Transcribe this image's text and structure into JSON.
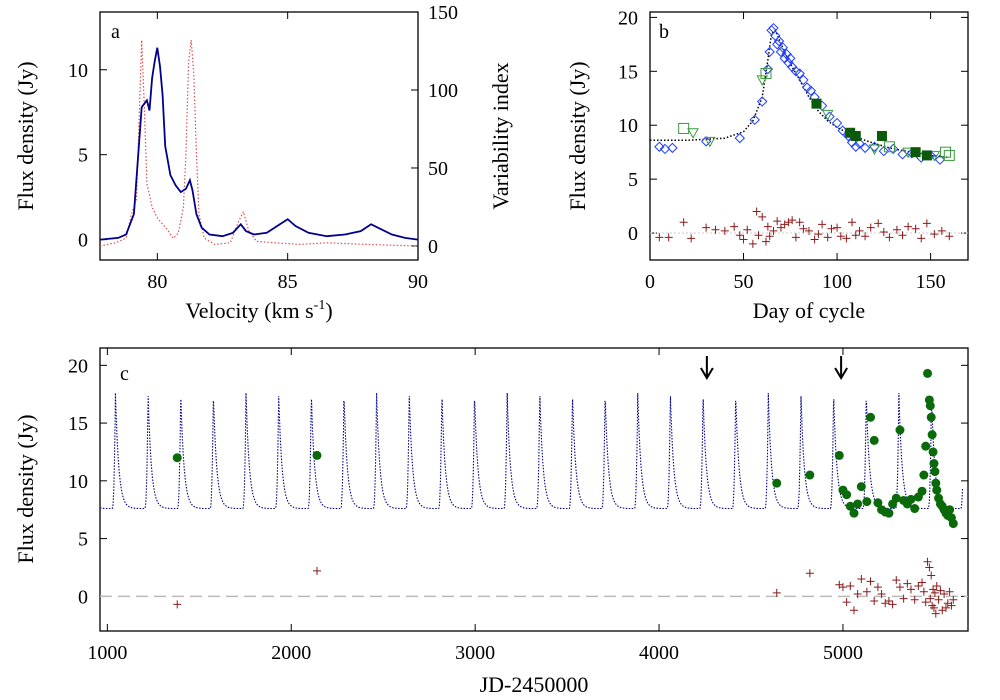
{
  "figure": {
    "panels": [
      {
        "id": "a",
        "letter": "a",
        "type": "line",
        "xlabel": "Velocity (km s",
        "xlabel_sup": "-1",
        "xlabel_tail": ")",
        "ylabel": "Flux density (Jy)",
        "y2label": "Variability index",
        "xlim": [
          77.8,
          90
        ],
        "ylim": [
          -1.2,
          13.4
        ],
        "y2lim": [
          -9,
          150
        ],
        "xticks": [
          80,
          85,
          90
        ],
        "yticks": [
          0,
          5,
          10
        ],
        "y2ticks": [
          0,
          50,
          100,
          150
        ],
        "colors": {
          "flux": "#00008b",
          "variability": "#e05050"
        }
      },
      {
        "id": "b",
        "letter": "b",
        "type": "scatter",
        "xlabel": "Day of cycle",
        "ylabel": "Flux density (Jy)",
        "xlim": [
          0,
          170
        ],
        "ylim": [
          -2.5,
          20.5
        ],
        "xticks": [
          0,
          50,
          100,
          150
        ],
        "yticks": [
          0,
          5,
          10,
          15,
          20
        ],
        "colors": {
          "diamond": "#1f3fff",
          "triangle": "#3a9a3a",
          "open_square": "#3a9a3a",
          "filled_square": "#0a5a0a",
          "cross": "#8b1a1a",
          "model": "#000000"
        }
      },
      {
        "id": "c",
        "letter": "c",
        "type": "scatter",
        "xlabel": "JD-2450000",
        "ylabel": "Flux density (Jy)",
        "xlim": [
          960,
          5680
        ],
        "ylim": [
          -3,
          21.5
        ],
        "xticks": [
          1000,
          2000,
          3000,
          4000,
          5000
        ],
        "yticks": [
          0,
          5,
          10,
          15,
          20
        ],
        "colors": {
          "model": "#00008b",
          "points": "#0a6a0a",
          "residual": "#8b1a1a",
          "zero": "#bbbbbb"
        }
      }
    ]
  },
  "chart_data": [
    {
      "panel": "a",
      "type": "line",
      "xlabel": "Velocity (km s-1)",
      "ylabel": "Flux density (Jy)",
      "y2label": "Variability index",
      "xlim": [
        77.8,
        90
      ],
      "ylim": [
        -1.2,
        13.4
      ],
      "y2lim": [
        -9,
        150
      ],
      "series": [
        {
          "axis": "left",
          "style": "solid",
          "x": [
            77.8,
            78.5,
            78.8,
            79.1,
            79.4,
            79.6,
            79.7,
            79.8,
            79.9,
            80.0,
            80.1,
            80.2,
            80.3,
            80.5,
            80.7,
            80.9,
            81.1,
            81.25,
            81.35,
            81.5,
            81.7,
            82.0,
            82.5,
            82.9,
            83.2,
            83.4,
            83.7,
            84.2,
            84.7,
            85.0,
            85.3,
            85.8,
            86.5,
            87.2,
            87.8,
            88.2,
            88.6,
            89.0,
            89.5,
            90.0
          ],
          "y": [
            0.0,
            0.1,
            0.3,
            1.5,
            7.8,
            8.2,
            7.6,
            9.5,
            10.5,
            11.3,
            10.2,
            8.5,
            5.5,
            3.8,
            3.2,
            2.8,
            3.0,
            3.5,
            2.9,
            1.5,
            0.7,
            0.3,
            0.2,
            0.4,
            0.9,
            0.5,
            0.3,
            0.4,
            0.9,
            1.2,
            0.8,
            0.4,
            0.2,
            0.3,
            0.5,
            0.9,
            0.6,
            0.3,
            0.1,
            0.0
          ]
        },
        {
          "axis": "right",
          "style": "dotted",
          "x": [
            77.8,
            78.4,
            78.8,
            79.0,
            79.2,
            79.4,
            79.5,
            79.6,
            79.8,
            80.0,
            80.2,
            80.4,
            80.6,
            80.8,
            81.0,
            81.1,
            81.2,
            81.3,
            81.4,
            81.5,
            81.6,
            81.8,
            82.2,
            82.8,
            83.1,
            83.3,
            83.5,
            83.8,
            84.5,
            85.5,
            86.5,
            88.0,
            90.0
          ],
          "y": [
            0,
            2,
            5,
            20,
            30,
            132,
            90,
            40,
            25,
            18,
            14,
            10,
            5,
            8,
            25,
            60,
            118,
            132,
            110,
            60,
            20,
            5,
            1,
            2,
            15,
            22,
            10,
            3,
            2,
            1,
            2,
            1,
            0
          ]
        }
      ]
    },
    {
      "panel": "b",
      "type": "scatter",
      "xlabel": "Day of cycle",
      "ylabel": "Flux density (Jy)",
      "xlim": [
        0,
        170
      ],
      "ylim": [
        -2.5,
        20.5
      ],
      "model_curve": {
        "x": [
          0,
          10,
          20,
          30,
          40,
          50,
          55,
          60,
          63,
          65,
          67,
          70,
          73,
          76,
          80,
          85,
          90,
          95,
          100,
          110,
          120,
          130,
          140,
          150,
          160
        ],
        "y": [
          8.6,
          8.6,
          8.6,
          8.7,
          8.8,
          9.4,
          10.4,
          12.6,
          16.0,
          18.5,
          18.8,
          17.6,
          16.4,
          15.4,
          14.2,
          12.6,
          11.3,
          10.4,
          9.8,
          8.9,
          8.3,
          7.8,
          7.5,
          7.2,
          7.0
        ]
      },
      "diamonds": {
        "x": [
          5,
          8,
          12,
          30,
          48,
          56,
          60,
          63,
          64,
          65,
          66,
          67,
          68,
          69,
          70,
          71,
          72,
          73,
          74,
          75,
          76,
          78,
          80,
          82,
          84,
          86,
          88,
          92,
          96,
          100,
          103,
          106,
          108,
          110,
          112,
          115,
          120,
          125,
          130,
          135,
          140,
          145,
          150,
          155
        ],
        "y": [
          8.0,
          7.8,
          7.9,
          8.5,
          8.8,
          10.5,
          12.2,
          15.2,
          16.8,
          18.8,
          19.0,
          18.3,
          17.5,
          17.8,
          16.8,
          17.2,
          16.2,
          16.6,
          15.8,
          16.2,
          15.4,
          15.0,
          14.8,
          14.2,
          13.5,
          13.2,
          12.6,
          11.8,
          10.8,
          10.2,
          9.5,
          9.0,
          8.4,
          8.0,
          8.3,
          7.9,
          8.0,
          7.6,
          7.8,
          7.3,
          7.4,
          7.0,
          7.2,
          6.8
        ]
      },
      "triangles": {
        "x": [
          23,
          32,
          60,
          95,
          120,
          138,
          152
        ],
        "y": [
          9.3,
          8.5,
          14.2,
          11.0,
          7.8,
          7.5,
          7.2
        ]
      },
      "open_squares": {
        "x": [
          18,
          62,
          128,
          158,
          160
        ],
        "y": [
          9.7,
          14.8,
          8.0,
          7.5,
          7.2
        ]
      },
      "filled_squares": {
        "x": [
          89,
          107,
          110,
          124,
          142,
          148
        ],
        "y": [
          12.0,
          9.3,
          9.0,
          9.0,
          7.5,
          7.2
        ]
      },
      "crosses": {
        "x": [
          5,
          10,
          18,
          22,
          30,
          35,
          40,
          45,
          48,
          50,
          52,
          55,
          57,
          58,
          60,
          62,
          63,
          64,
          66,
          68,
          70,
          72,
          74,
          76,
          78,
          80,
          82,
          85,
          88,
          90,
          92,
          95,
          97,
          100,
          102,
          105,
          108,
          110,
          112,
          115,
          118,
          122,
          125,
          128,
          132,
          135,
          138,
          142,
          145,
          148,
          152,
          156,
          160
        ],
        "y": [
          -0.4,
          -0.4,
          1.0,
          -0.5,
          0.5,
          0.3,
          0.2,
          0.6,
          -0.2,
          -0.6,
          0.3,
          -1.0,
          2.0,
          -0.2,
          1.5,
          -0.8,
          0.6,
          -0.3,
          0.2,
          1.1,
          0.5,
          0.8,
          1.0,
          1.2,
          -0.4,
          1.0,
          0.4,
          0.2,
          -0.6,
          -0.1,
          0.8,
          -0.4,
          0.4,
          0.5,
          -0.3,
          -0.5,
          1.0,
          -0.2,
          0.2,
          -0.3,
          0.5,
          0.9,
          0.1,
          -0.4,
          0.3,
          -0.2,
          0.6,
          0.4,
          -0.5,
          0.9,
          -0.1,
          0.2,
          -0.3
        ]
      }
    },
    {
      "panel": "c",
      "type": "scatter",
      "xlabel": "JD-2450000",
      "ylabel": "Flux density (Jy)",
      "xlim": [
        960,
        5680
      ],
      "ylim": [
        -3,
        21.5
      ],
      "model": {
        "period_days": 177.5,
        "peak_x": 1044,
        "peak_flux": 17.6,
        "base_flux": 7.6,
        "rise_days": 18,
        "decay_days": 60
      },
      "arrows": {
        "x": [
          4260,
          4990
        ]
      },
      "points": {
        "x": [
          1380,
          2140,
          4640,
          4820,
          4980,
          5000,
          5020,
          5040,
          5060,
          5080,
          5100,
          5130,
          5150,
          5170,
          5190,
          5210,
          5230,
          5250,
          5270,
          5290,
          5310,
          5330,
          5350,
          5370,
          5390,
          5410,
          5430,
          5440,
          5450,
          5460,
          5470,
          5475,
          5480,
          5485,
          5490,
          5495,
          5500,
          5505,
          5510,
          5520,
          5530,
          5540,
          5550,
          5560,
          5570,
          5580,
          5590,
          5600
        ],
        "y": [
          12.0,
          12.2,
          9.8,
          10.5,
          12.2,
          9.2,
          8.8,
          7.8,
          7.2,
          8.0,
          9.5,
          8.2,
          15.5,
          13.5,
          8.1,
          7.5,
          7.3,
          7.2,
          8.0,
          8.5,
          14.4,
          8.3,
          8.0,
          8.4,
          7.6,
          8.6,
          9.1,
          10.5,
          13.0,
          19.3,
          17.0,
          16.5,
          15.5,
          14.0,
          12.5,
          11.5,
          10.8,
          9.8,
          9.2,
          8.5,
          8.0,
          7.8,
          7.5,
          7.2,
          7.0,
          7.5,
          6.8,
          6.3
        ]
      },
      "residuals": {
        "x": [
          1380,
          2140,
          4640,
          4820,
          4980,
          5000,
          5020,
          5040,
          5060,
          5080,
          5100,
          5130,
          5150,
          5170,
          5190,
          5210,
          5230,
          5250,
          5270,
          5290,
          5310,
          5330,
          5350,
          5370,
          5390,
          5410,
          5430,
          5440,
          5450,
          5460,
          5470,
          5475,
          5480,
          5485,
          5490,
          5495,
          5500,
          5505,
          5510,
          5520,
          5530,
          5540,
          5550,
          5560,
          5570,
          5580,
          5590,
          5600
        ],
        "y": [
          -0.7,
          2.2,
          0.3,
          2.0,
          1.0,
          0.8,
          -0.5,
          0.9,
          -1.2,
          0.2,
          1.5,
          0.4,
          1.3,
          -0.4,
          0.8,
          0.2,
          -0.6,
          -0.4,
          -0.7,
          1.4,
          0.8,
          -0.2,
          1.1,
          0.6,
          -0.3,
          0.9,
          1.2,
          0.4,
          -0.5,
          3.0,
          2.5,
          -0.2,
          1.8,
          -0.8,
          0.6,
          -1.0,
          0.3,
          -1.5,
          0.9,
          -0.3,
          0.5,
          -1.2,
          0.2,
          -1.0,
          -0.6,
          0.4,
          -0.8,
          -0.3
        ]
      }
    }
  ]
}
